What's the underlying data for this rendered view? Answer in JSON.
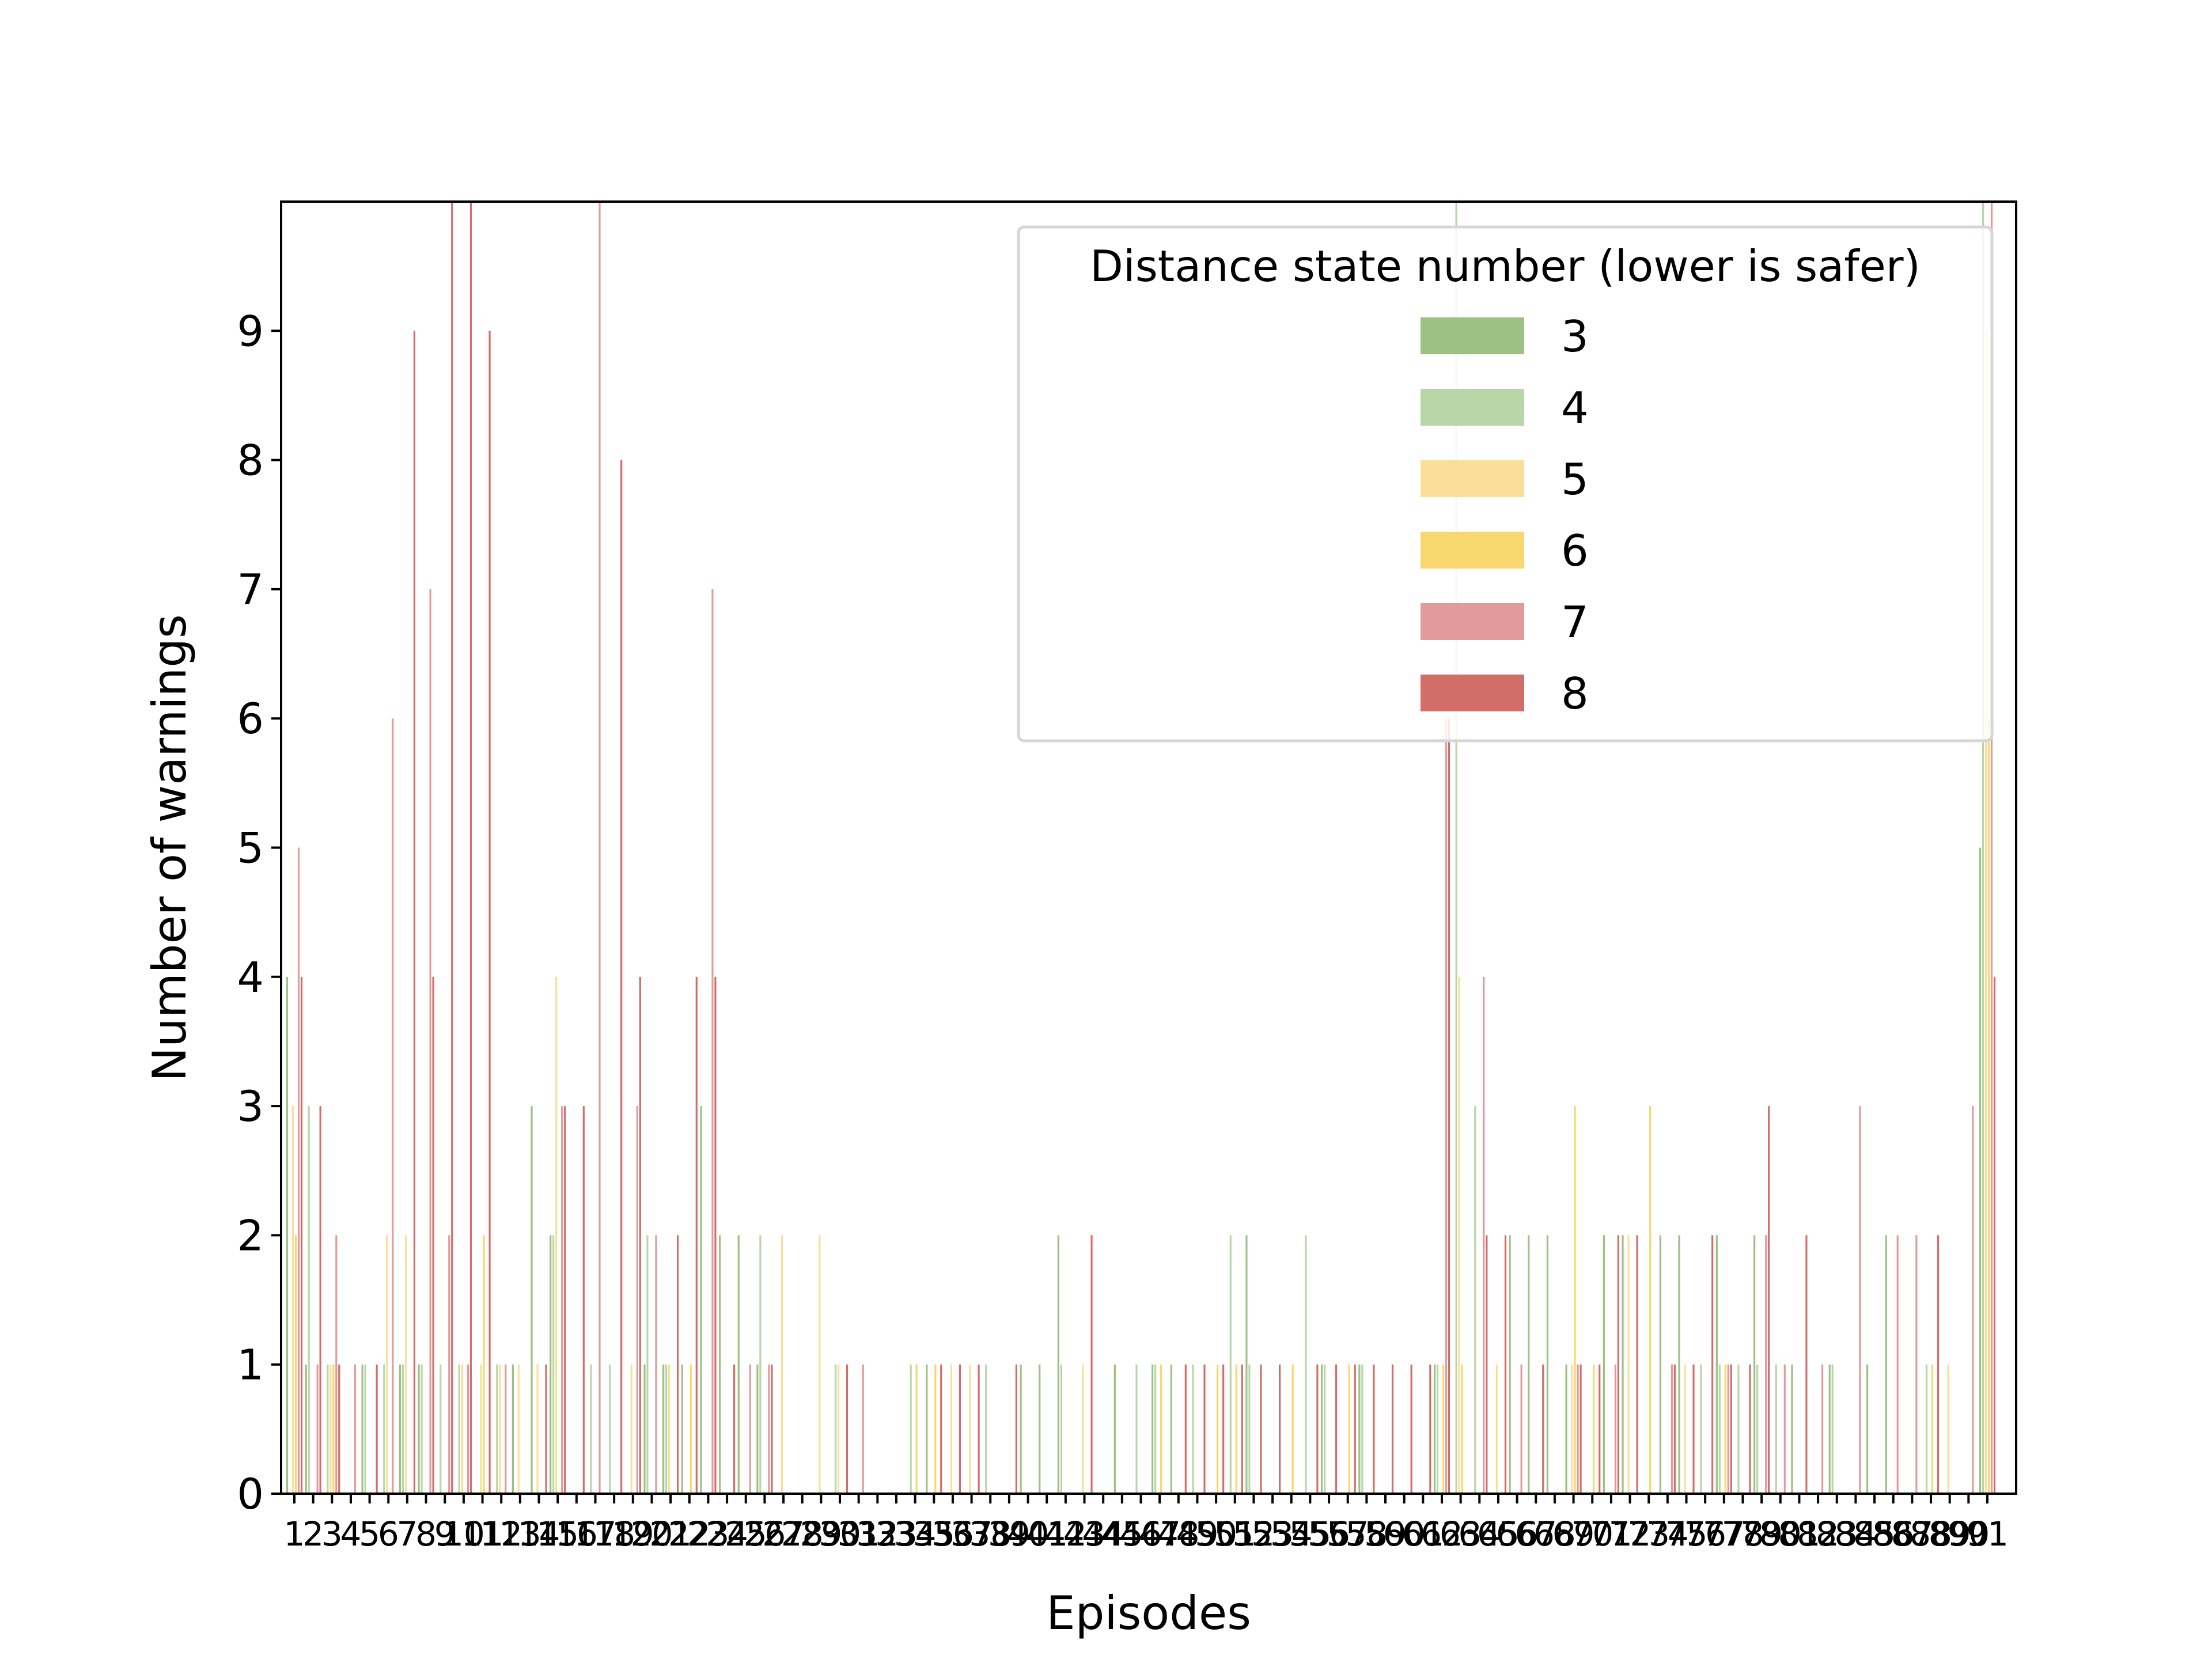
{
  "chart_data": {
    "type": "bar",
    "xlabel": "Episodes",
    "ylabel": "Number of warnings",
    "ylim": [
      0,
      10
    ],
    "yticks": [
      0,
      1,
      2,
      3,
      4,
      5,
      6,
      7,
      8,
      9
    ],
    "grid": false,
    "legend": {
      "title": "Distance state number (lower is safer)",
      "placement": "top-right"
    },
    "categories": [
      1,
      2,
      3,
      4,
      5,
      6,
      7,
      8,
      9,
      10,
      11,
      12,
      13,
      14,
      15,
      16,
      17,
      18,
      19,
      20,
      21,
      22,
      23,
      24,
      25,
      26,
      27,
      28,
      29,
      30,
      31,
      32,
      33,
      34,
      35,
      36,
      37,
      38,
      39,
      40,
      41,
      42,
      43,
      44,
      45,
      46,
      47,
      48,
      49,
      50,
      51,
      52,
      53,
      54,
      55,
      56,
      57,
      58,
      59,
      60,
      61,
      62,
      63,
      64,
      65,
      66,
      67,
      68,
      69,
      70,
      71,
      72,
      73,
      74,
      75,
      76,
      77,
      78,
      79,
      80,
      81,
      82,
      83,
      84,
      85,
      86,
      87,
      88,
      89,
      90,
      91
    ],
    "series": [
      {
        "name": "3",
        "color": "#9dc184",
        "values": [
          4,
          1,
          0,
          0,
          1,
          0,
          1,
          1,
          0,
          0,
          0,
          0,
          1,
          3,
          2,
          0,
          0,
          0,
          0,
          1,
          1,
          1,
          3,
          2,
          2,
          1,
          0,
          0,
          0,
          0,
          0,
          0,
          0,
          0,
          1,
          0,
          0,
          0,
          0,
          1,
          1,
          2,
          0,
          0,
          1,
          0,
          1,
          1,
          0,
          0,
          0,
          2,
          0,
          0,
          0,
          1,
          0,
          1,
          0,
          0,
          0,
          1,
          0,
          0,
          0,
          2,
          2,
          2,
          1,
          0,
          2,
          2,
          0,
          2,
          2,
          0,
          2,
          0,
          2,
          0,
          1,
          0,
          1,
          0,
          1,
          2,
          0,
          0,
          0,
          0,
          5
        ]
      },
      {
        "name": "4",
        "color": "#b8d6a8",
        "values": [
          0,
          3,
          1,
          0,
          1,
          1,
          1,
          1,
          1,
          1,
          0,
          1,
          0,
          0,
          2,
          0,
          1,
          1,
          0,
          2,
          1,
          0,
          0,
          0,
          0,
          2,
          0,
          0,
          0,
          1,
          0,
          0,
          0,
          1,
          0,
          0,
          0,
          1,
          0,
          0,
          0,
          1,
          0,
          0,
          0,
          1,
          1,
          0,
          1,
          0,
          2,
          1,
          0,
          0,
          2,
          1,
          0,
          1,
          0,
          0,
          0,
          1,
          10,
          3,
          0,
          0,
          0,
          0,
          0,
          0,
          0,
          0,
          0,
          0,
          0,
          1,
          1,
          1,
          1,
          1,
          0,
          0,
          1,
          0,
          0,
          0,
          0,
          1,
          0,
          0,
          10
        ]
      },
      {
        "name": "5",
        "color": "#f9df99",
        "values": [
          3,
          0,
          1,
          0,
          0,
          2,
          2,
          0,
          0,
          1,
          1,
          1,
          1,
          1,
          4,
          0,
          0,
          0,
          1,
          0,
          1,
          0,
          0,
          0,
          0,
          0,
          2,
          0,
          2,
          1,
          0,
          0,
          0,
          0,
          0,
          1,
          1,
          0,
          0,
          0,
          0,
          0,
          1,
          0,
          0,
          0,
          0,
          0,
          0,
          0,
          0,
          0,
          0,
          0,
          0,
          0,
          0,
          0,
          0,
          0,
          0,
          0,
          4,
          0,
          1,
          0,
          0,
          0,
          1,
          0,
          0,
          2,
          0,
          0,
          1,
          0,
          0,
          0,
          0,
          0,
          0,
          0,
          0,
          0,
          0,
          0,
          0,
          0,
          1,
          0,
          9
        ]
      },
      {
        "name": "6",
        "color": "#f8d86e",
        "values": [
          2,
          0,
          1,
          0,
          0,
          0,
          0,
          0,
          0,
          0,
          2,
          0,
          0,
          0,
          0,
          0,
          0,
          0,
          0,
          0,
          0,
          1,
          0,
          0,
          0,
          0,
          0,
          0,
          0,
          0,
          0,
          0,
          0,
          1,
          1,
          0,
          0,
          0,
          0,
          0,
          0,
          0,
          0,
          0,
          0,
          0,
          1,
          0,
          0,
          1,
          1,
          0,
          0,
          1,
          0,
          0,
          1,
          0,
          0,
          0,
          0,
          1,
          1,
          0,
          0,
          0,
          0,
          0,
          3,
          1,
          0,
          0,
          3,
          0,
          0,
          0,
          1,
          0,
          0,
          0,
          0,
          0,
          0,
          0,
          0,
          0,
          0,
          1,
          0,
          0,
          6
        ]
      },
      {
        "name": "7",
        "color": "#e19b9a",
        "values": [
          5,
          1,
          2,
          1,
          0,
          6,
          0,
          7,
          2,
          1,
          0,
          1,
          0,
          0,
          3,
          0,
          10,
          0,
          3,
          2,
          0,
          0,
          7,
          0,
          1,
          1,
          0,
          0,
          0,
          0,
          1,
          0,
          0,
          0,
          0,
          0,
          0,
          0,
          0,
          0,
          0,
          0,
          0,
          0,
          0,
          0,
          0,
          0,
          0,
          0,
          0,
          0,
          0,
          0,
          0,
          0,
          0,
          0,
          0,
          0,
          0,
          6,
          0,
          4,
          0,
          1,
          0,
          0,
          1,
          0,
          1,
          0,
          0,
          1,
          0,
          0,
          1,
          0,
          2,
          1,
          0,
          1,
          0,
          3,
          0,
          2,
          2,
          0,
          0,
          3,
          10
        ]
      },
      {
        "name": "8",
        "color": "#d36d6a",
        "values": [
          4,
          3,
          1,
          0,
          1,
          0,
          9,
          4,
          10,
          10,
          9,
          0,
          0,
          1,
          3,
          3,
          0,
          8,
          4,
          0,
          2,
          4,
          4,
          1,
          0,
          1,
          0,
          0,
          0,
          1,
          0,
          0,
          0,
          0,
          1,
          1,
          1,
          0,
          1,
          0,
          0,
          0,
          2,
          0,
          0,
          0,
          0,
          1,
          1,
          1,
          1,
          1,
          1,
          0,
          1,
          1,
          1,
          1,
          1,
          1,
          1,
          6,
          0,
          2,
          2,
          0,
          1,
          0,
          1,
          1,
          2,
          2,
          0,
          1,
          1,
          2,
          1,
          1,
          3,
          0,
          2,
          0,
          0,
          0,
          0,
          0,
          0,
          2,
          0,
          0,
          4
        ]
      }
    ]
  }
}
